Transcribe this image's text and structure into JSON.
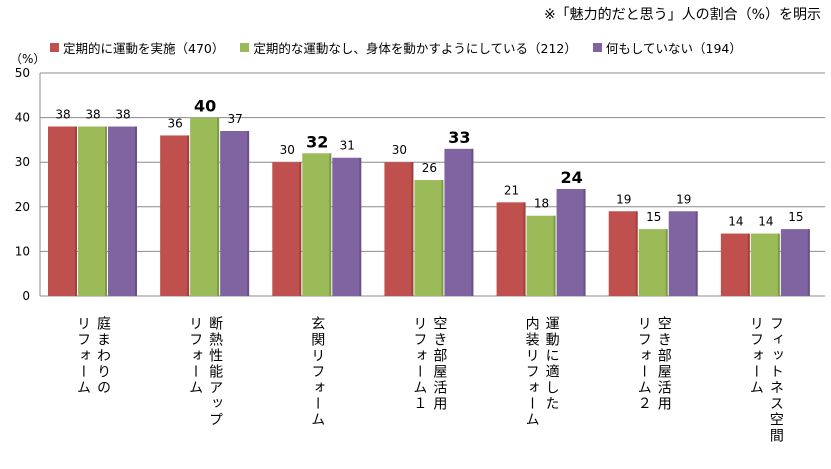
{
  "chart_data": {
    "type": "bar",
    "note": "※「魅力的だと思う」人の割合（%）を明示",
    "ylabel": "（%）",
    "ylim": [
      0,
      50
    ],
    "yticks": [
      0,
      10,
      20,
      30,
      40,
      50
    ],
    "grid": "horizontal",
    "legend_position": "top",
    "categories": [
      [
        "庭まわりの",
        "リフォーム"
      ],
      [
        "断熱性能アップ",
        "リフォーム"
      ],
      [
        "玄関リフォーム"
      ],
      [
        "空き部屋活用",
        "リフォーム１"
      ],
      [
        "運動に適した",
        "内装リフォーム"
      ],
      [
        "空き部屋活用",
        "リフォーム２"
      ],
      [
        "フィットネス空間",
        "リフォーム"
      ]
    ],
    "series": [
      {
        "name": "定期的に運動を実施（470）",
        "color": "#c0504d",
        "values": [
          38,
          36,
          30,
          30,
          21,
          19,
          14
        ]
      },
      {
        "name": "定期的な運動なし、身体を動かすようにしている（212）",
        "color": "#9bbb59",
        "values": [
          38,
          40,
          32,
          26,
          18,
          15,
          14
        ]
      },
      {
        "name": "何もしていない（194）",
        "color": "#8064a2",
        "values": [
          38,
          37,
          31,
          33,
          24,
          19,
          15
        ]
      }
    ],
    "highlight": [
      [
        false,
        false,
        false
      ],
      [
        false,
        true,
        false
      ],
      [
        false,
        true,
        false
      ],
      [
        false,
        false,
        true
      ],
      [
        false,
        false,
        true
      ],
      [
        false,
        false,
        false
      ],
      [
        false,
        false,
        false
      ]
    ]
  }
}
